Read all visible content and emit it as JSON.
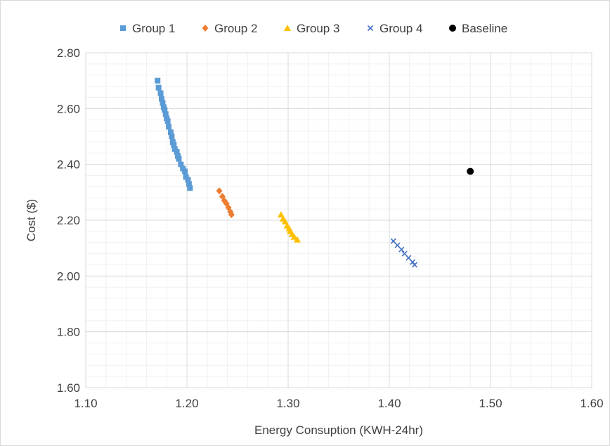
{
  "chart_data": {
    "type": "scatter",
    "title": "",
    "xlabel": "Energy Consuption (KWH-24hr)",
    "ylabel": "Cost ($)",
    "xlim": [
      1.1,
      1.6
    ],
    "ylim": [
      1.6,
      2.8
    ],
    "x_ticks": [
      "1.10",
      "1.20",
      "1.30",
      "1.40",
      "1.50",
      "1.60"
    ],
    "y_ticks": [
      "1.60",
      "1.80",
      "2.00",
      "2.20",
      "2.40",
      "2.60",
      "2.80"
    ],
    "grid": true,
    "legend_position": "top",
    "series": [
      {
        "name": "Group 1",
        "color": "#5b9bd5",
        "marker": "square",
        "points": [
          [
            1.171,
            2.7
          ],
          [
            1.172,
            2.675
          ],
          [
            1.174,
            2.655
          ],
          [
            1.175,
            2.635
          ],
          [
            1.176,
            2.62
          ],
          [
            1.177,
            2.605
          ],
          [
            1.178,
            2.595
          ],
          [
            1.179,
            2.58
          ],
          [
            1.18,
            2.565
          ],
          [
            1.181,
            2.555
          ],
          [
            1.182,
            2.535
          ],
          [
            1.184,
            2.515
          ],
          [
            1.185,
            2.5
          ],
          [
            1.186,
            2.48
          ],
          [
            1.187,
            2.47
          ],
          [
            1.188,
            2.455
          ],
          [
            1.19,
            2.445
          ],
          [
            1.191,
            2.43
          ],
          [
            1.192,
            2.42
          ],
          [
            1.194,
            2.4
          ],
          [
            1.196,
            2.385
          ],
          [
            1.198,
            2.375
          ],
          [
            1.199,
            2.355
          ],
          [
            1.201,
            2.345
          ],
          [
            1.202,
            2.33
          ],
          [
            1.203,
            2.315
          ]
        ]
      },
      {
        "name": "Group 2",
        "color": "#ed7d31",
        "marker": "diamond",
        "points": [
          [
            1.232,
            2.305
          ],
          [
            1.235,
            2.285
          ],
          [
            1.237,
            2.27
          ],
          [
            1.239,
            2.26
          ],
          [
            1.241,
            2.245
          ],
          [
            1.243,
            2.23
          ],
          [
            1.244,
            2.22
          ]
        ]
      },
      {
        "name": "Group 3",
        "color": "#ffc000",
        "marker": "triangle",
        "points": [
          [
            1.293,
            2.22
          ],
          [
            1.295,
            2.205
          ],
          [
            1.297,
            2.195
          ],
          [
            1.299,
            2.18
          ],
          [
            1.301,
            2.17
          ],
          [
            1.302,
            2.16
          ],
          [
            1.304,
            2.15
          ],
          [
            1.306,
            2.14
          ],
          [
            1.309,
            2.13
          ]
        ]
      },
      {
        "name": "Group 4",
        "color": "#4472c4",
        "marker": "x",
        "points": [
          [
            1.404,
            2.125
          ],
          [
            1.408,
            2.11
          ],
          [
            1.412,
            2.095
          ],
          [
            1.415,
            2.08
          ],
          [
            1.419,
            2.065
          ],
          [
            1.423,
            2.05
          ],
          [
            1.425,
            2.04
          ]
        ]
      },
      {
        "name": "Baseline",
        "color": "#000000",
        "marker": "circle",
        "points": [
          [
            1.48,
            2.375
          ]
        ]
      }
    ]
  }
}
